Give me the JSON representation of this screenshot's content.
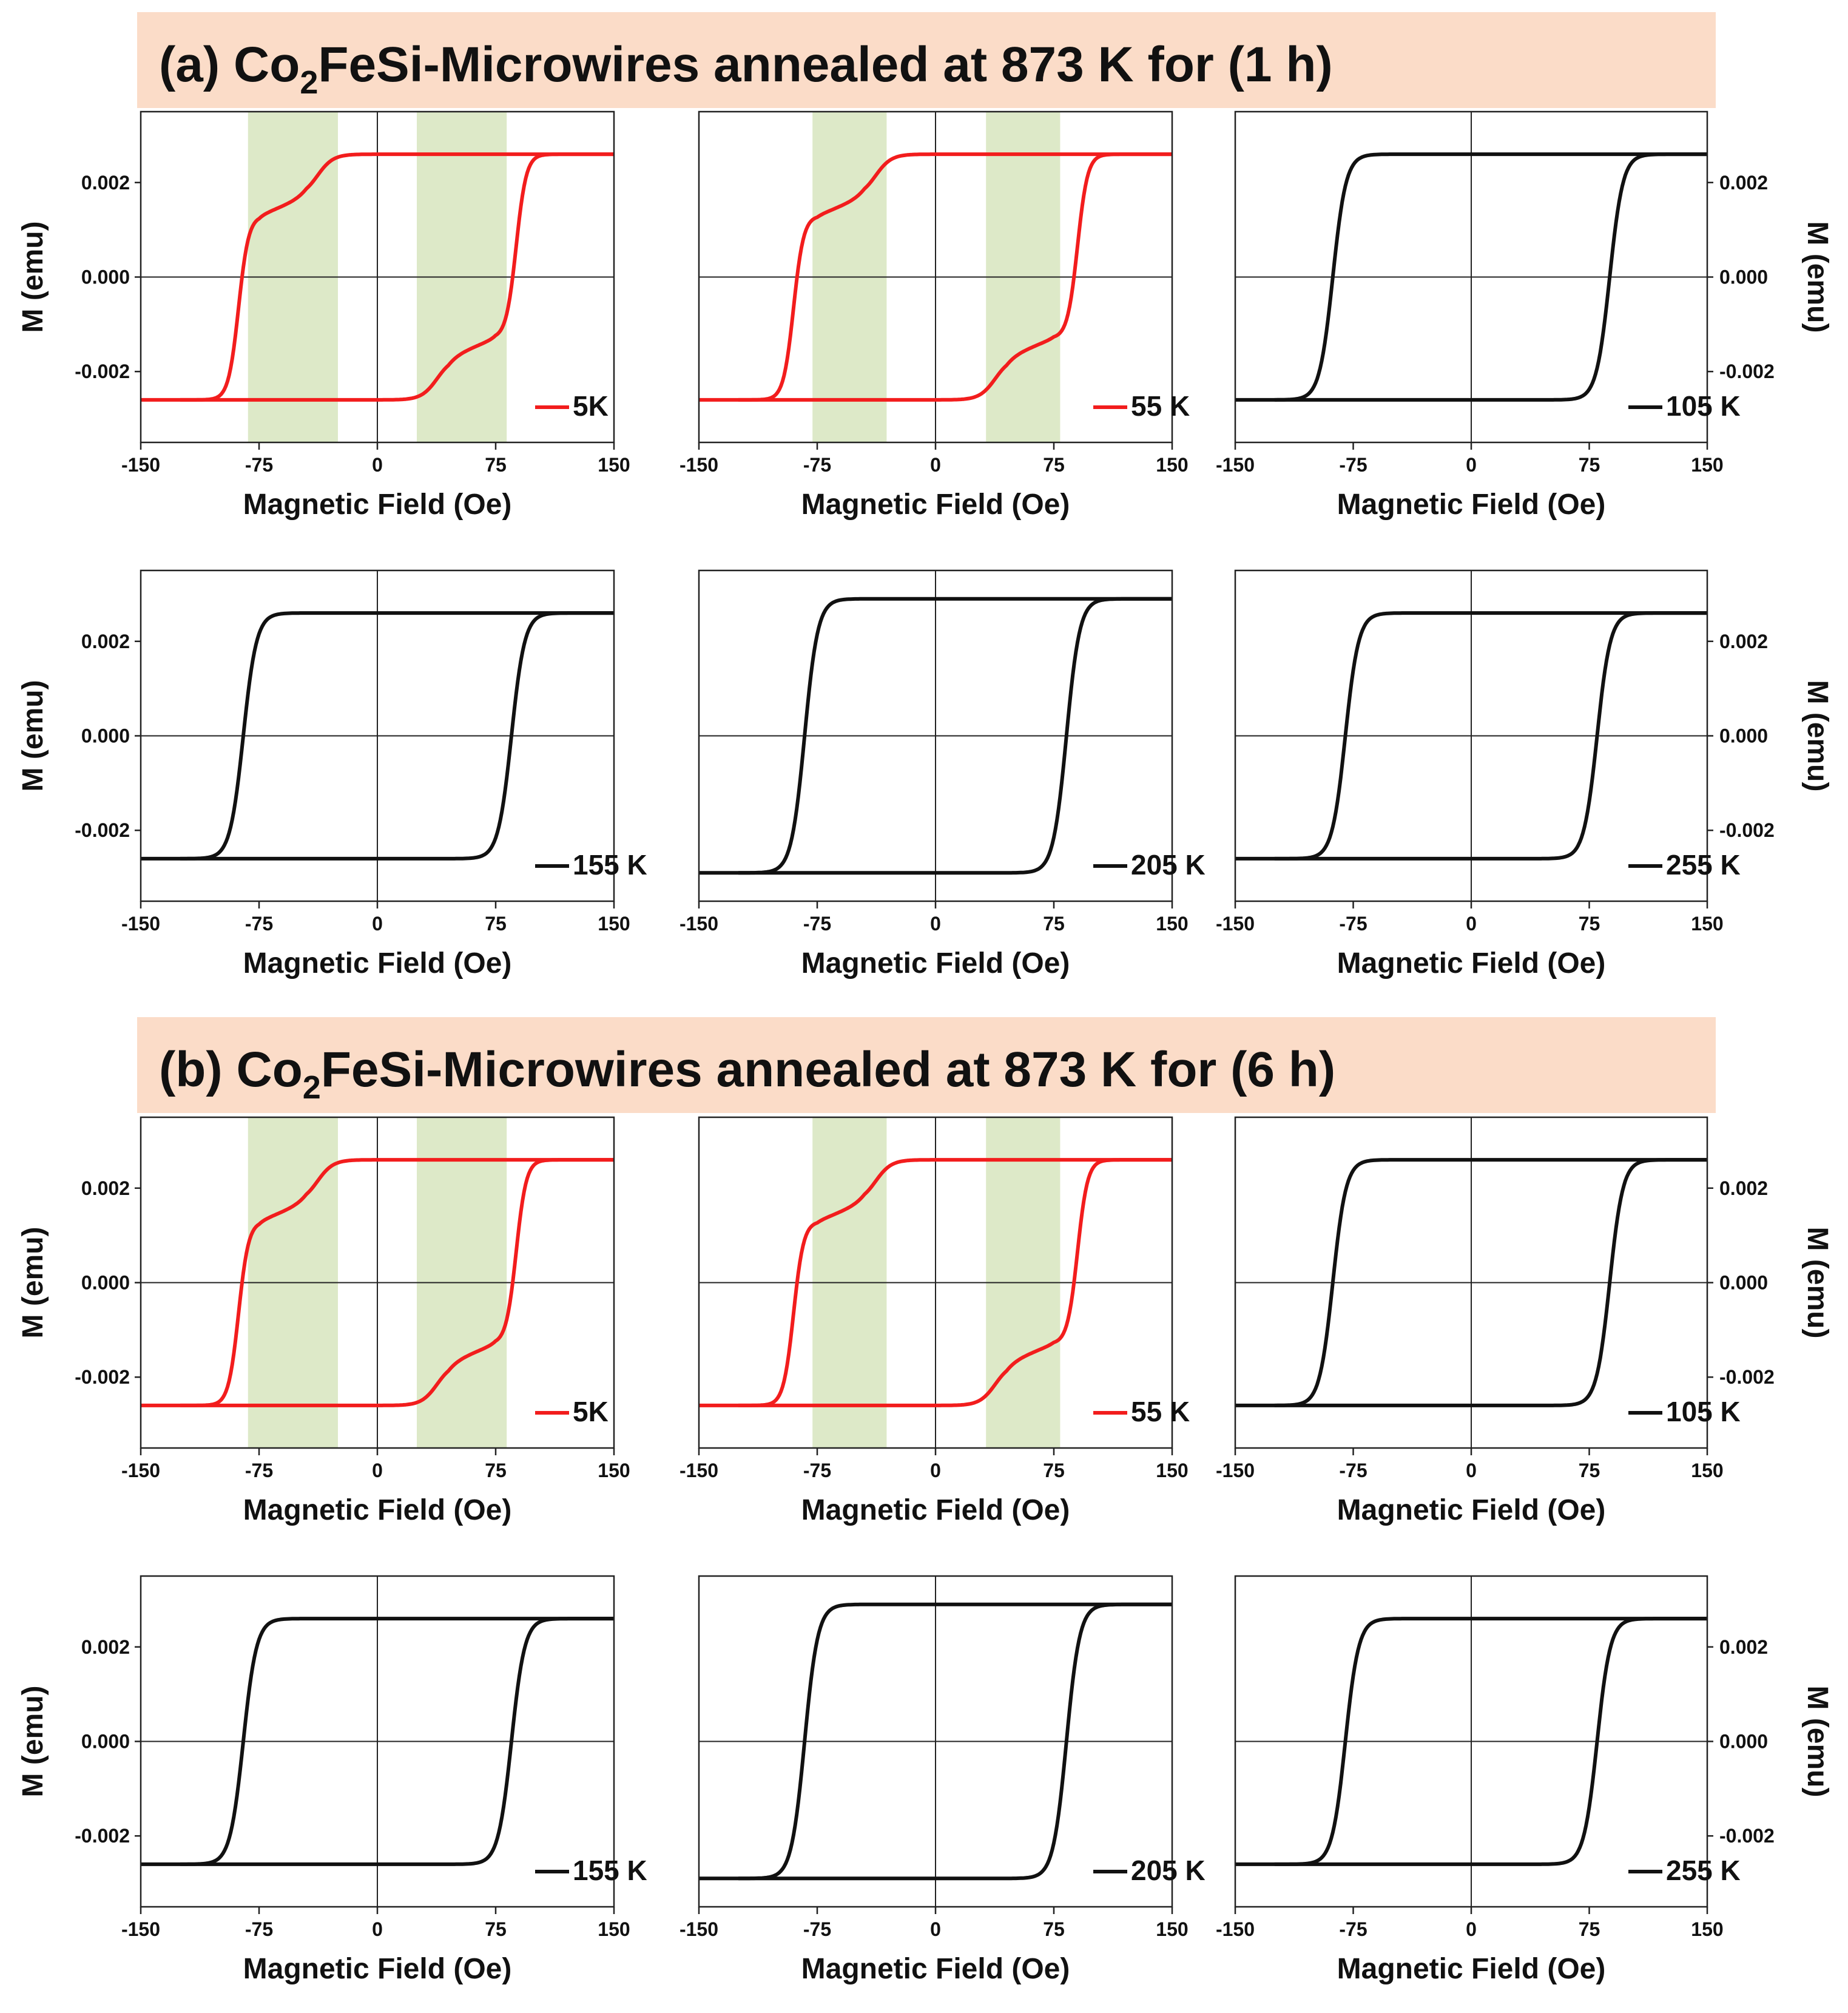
{
  "figure": {
    "sections": [
      {
        "prefix": "(a) Co",
        "subscript": "2",
        "suffix": "FeSi-Microwires annealed at 873 K for (1 h)"
      },
      {
        "prefix": "(b) Co",
        "subscript": "2",
        "suffix": "FeSi-Microwires annealed at 873 K for (6 h)"
      }
    ],
    "colors": {
      "banner": "#fbdcc8",
      "highlight": "#dde9c8",
      "red_curve": "#f21d1d",
      "black_curve": "#111111"
    }
  },
  "chart_data": [
    {
      "type": "line",
      "section": 0,
      "panel_index": 0,
      "series": [
        {
          "name": "5K",
          "color": "#f21d1d",
          "Hc": 88,
          "Ms": 0.0026,
          "two_step": true
        }
      ],
      "xlabel": "Magnetic Field (Oe)",
      "ylabel": "M (emu)",
      "ylabel_side": "left",
      "xlim": [
        -150,
        150
      ],
      "ylim": [
        -0.0035,
        0.0035
      ],
      "xticks": [
        "-150",
        "-75",
        "0",
        "75",
        "150"
      ],
      "yticks": [
        "0.002",
        "0.000",
        "-0.002"
      ],
      "shaded_regions": [
        [
          -82,
          -25
        ],
        [
          25,
          82
        ]
      ]
    },
    {
      "type": "line",
      "section": 0,
      "panel_index": 1,
      "series": [
        {
          "name": "55 K",
          "color": "#f21d1d",
          "Hc": 90,
          "Ms": 0.0026,
          "two_step": true
        }
      ],
      "xlabel": "Magnetic Field (Oe)",
      "ylabel": "",
      "ylabel_side": "none",
      "xlim": [
        -150,
        150
      ],
      "ylim": [
        -0.0035,
        0.0035
      ],
      "xticks": [
        "-150",
        "-75",
        "0",
        "75",
        "150"
      ],
      "yticks": [],
      "shaded_regions": [
        [
          -78,
          -31
        ],
        [
          32,
          79
        ]
      ]
    },
    {
      "type": "line",
      "section": 0,
      "panel_index": 2,
      "series": [
        {
          "name": "105 K",
          "color": "#111111",
          "Hc": 88,
          "Ms": 0.0026,
          "two_step": false
        }
      ],
      "xlabel": "Magnetic Field (Oe)",
      "ylabel": "M (emu)",
      "ylabel_side": "right",
      "xlim": [
        -150,
        150
      ],
      "ylim": [
        -0.0035,
        0.0035
      ],
      "xticks": [
        "-150",
        "-75",
        "0",
        "75",
        "150"
      ],
      "yticks": [
        "0.002",
        "0.000",
        "-0.002"
      ],
      "shaded_regions": []
    },
    {
      "type": "line",
      "section": 0,
      "panel_index": 3,
      "series": [
        {
          "name": "155 K",
          "color": "#111111",
          "Hc": 85,
          "Ms": 0.0026,
          "two_step": false
        }
      ],
      "xlabel": "Magnetic Field (Oe)",
      "ylabel": "M (emu)",
      "ylabel_side": "left",
      "xlim": [
        -150,
        150
      ],
      "ylim": [
        -0.0035,
        0.0035
      ],
      "xticks": [
        "-150",
        "-75",
        "0",
        "75",
        "150"
      ],
      "yticks": [
        "0.002",
        "0.000",
        "-0.002"
      ],
      "shaded_regions": []
    },
    {
      "type": "line",
      "section": 0,
      "panel_index": 4,
      "series": [
        {
          "name": "205 K",
          "color": "#111111",
          "Hc": 83,
          "Ms": 0.0029,
          "two_step": false
        }
      ],
      "xlabel": "Magnetic Field (Oe)",
      "ylabel": "",
      "ylabel_side": "none",
      "xlim": [
        -150,
        150
      ],
      "ylim": [
        -0.0035,
        0.0035
      ],
      "xticks": [
        "-150",
        "-75",
        "0",
        "75",
        "150"
      ],
      "yticks": [],
      "shaded_regions": []
    },
    {
      "type": "line",
      "section": 0,
      "panel_index": 5,
      "series": [
        {
          "name": "255 K",
          "color": "#111111",
          "Hc": 80,
          "Ms": 0.0026,
          "two_step": false
        }
      ],
      "xlabel": "Magnetic Field (Oe)",
      "ylabel": "M (emu)",
      "ylabel_side": "right",
      "xlim": [
        -150,
        150
      ],
      "ylim": [
        -0.0035,
        0.0035
      ],
      "xticks": [
        "-150",
        "-75",
        "0",
        "75",
        "150"
      ],
      "yticks": [
        "0.002",
        "0.000",
        "-0.002"
      ],
      "shaded_regions": []
    },
    {
      "type": "line",
      "section": 1,
      "panel_index": 0,
      "series": [
        {
          "name": "5K",
          "color": "#f21d1d",
          "Hc": 88,
          "Ms": 0.0026,
          "two_step": true
        }
      ],
      "xlabel": "Magnetic Field (Oe)",
      "ylabel": "M (emu)",
      "ylabel_side": "left",
      "xlim": [
        -150,
        150
      ],
      "ylim": [
        -0.0035,
        0.0035
      ],
      "xticks": [
        "-150",
        "-75",
        "0",
        "75",
        "150"
      ],
      "yticks": [
        "0.002",
        "0.000",
        "-0.002"
      ],
      "shaded_regions": [
        [
          -82,
          -25
        ],
        [
          25,
          82
        ]
      ]
    },
    {
      "type": "line",
      "section": 1,
      "panel_index": 1,
      "series": [
        {
          "name": "55 K",
          "color": "#f21d1d",
          "Hc": 90,
          "Ms": 0.0026,
          "two_step": true
        }
      ],
      "xlabel": "Magnetic Field (Oe)",
      "ylabel": "",
      "ylabel_side": "none",
      "xlim": [
        -150,
        150
      ],
      "ylim": [
        -0.0035,
        0.0035
      ],
      "xticks": [
        "-150",
        "-75",
        "0",
        "75",
        "150"
      ],
      "yticks": [],
      "shaded_regions": [
        [
          -78,
          -31
        ],
        [
          32,
          79
        ]
      ]
    },
    {
      "type": "line",
      "section": 1,
      "panel_index": 2,
      "series": [
        {
          "name": "105 K",
          "color": "#111111",
          "Hc": 88,
          "Ms": 0.0026,
          "two_step": false
        }
      ],
      "xlabel": "Magnetic Field (Oe)",
      "ylabel": "M (emu)",
      "ylabel_side": "right",
      "xlim": [
        -150,
        150
      ],
      "ylim": [
        -0.0035,
        0.0035
      ],
      "xticks": [
        "-150",
        "-75",
        "0",
        "75",
        "150"
      ],
      "yticks": [
        "0.002",
        "0.000",
        "-0.002"
      ],
      "shaded_regions": []
    },
    {
      "type": "line",
      "section": 1,
      "panel_index": 3,
      "series": [
        {
          "name": "155 K",
          "color": "#111111",
          "Hc": 85,
          "Ms": 0.0026,
          "two_step": false
        }
      ],
      "xlabel": "Magnetic Field (Oe)",
      "ylabel": "M (emu)",
      "ylabel_side": "left",
      "xlim": [
        -150,
        150
      ],
      "ylim": [
        -0.0035,
        0.0035
      ],
      "xticks": [
        "-150",
        "-75",
        "0",
        "75",
        "150"
      ],
      "yticks": [
        "0.002",
        "0.000",
        "-0.002"
      ],
      "shaded_regions": []
    },
    {
      "type": "line",
      "section": 1,
      "panel_index": 4,
      "series": [
        {
          "name": "205 K",
          "color": "#111111",
          "Hc": 83,
          "Ms": 0.0029,
          "two_step": false
        }
      ],
      "xlabel": "Magnetic Field (Oe)",
      "ylabel": "",
      "ylabel_side": "none",
      "xlim": [
        -150,
        150
      ],
      "ylim": [
        -0.0035,
        0.0035
      ],
      "xticks": [
        "-150",
        "-75",
        "0",
        "75",
        "150"
      ],
      "yticks": [],
      "shaded_regions": []
    },
    {
      "type": "line",
      "section": 1,
      "panel_index": 5,
      "series": [
        {
          "name": "255 K",
          "color": "#111111",
          "Hc": 80,
          "Ms": 0.0026,
          "two_step": false
        }
      ],
      "xlabel": "Magnetic Field (Oe)",
      "ylabel": "M (emu)",
      "ylabel_side": "right",
      "xlim": [
        -150,
        150
      ],
      "ylim": [
        -0.0035,
        0.0035
      ],
      "xticks": [
        "-150",
        "-75",
        "0",
        "75",
        "150"
      ],
      "yticks": [
        "0.002",
        "0.000",
        "-0.002"
      ],
      "shaded_regions": []
    }
  ]
}
